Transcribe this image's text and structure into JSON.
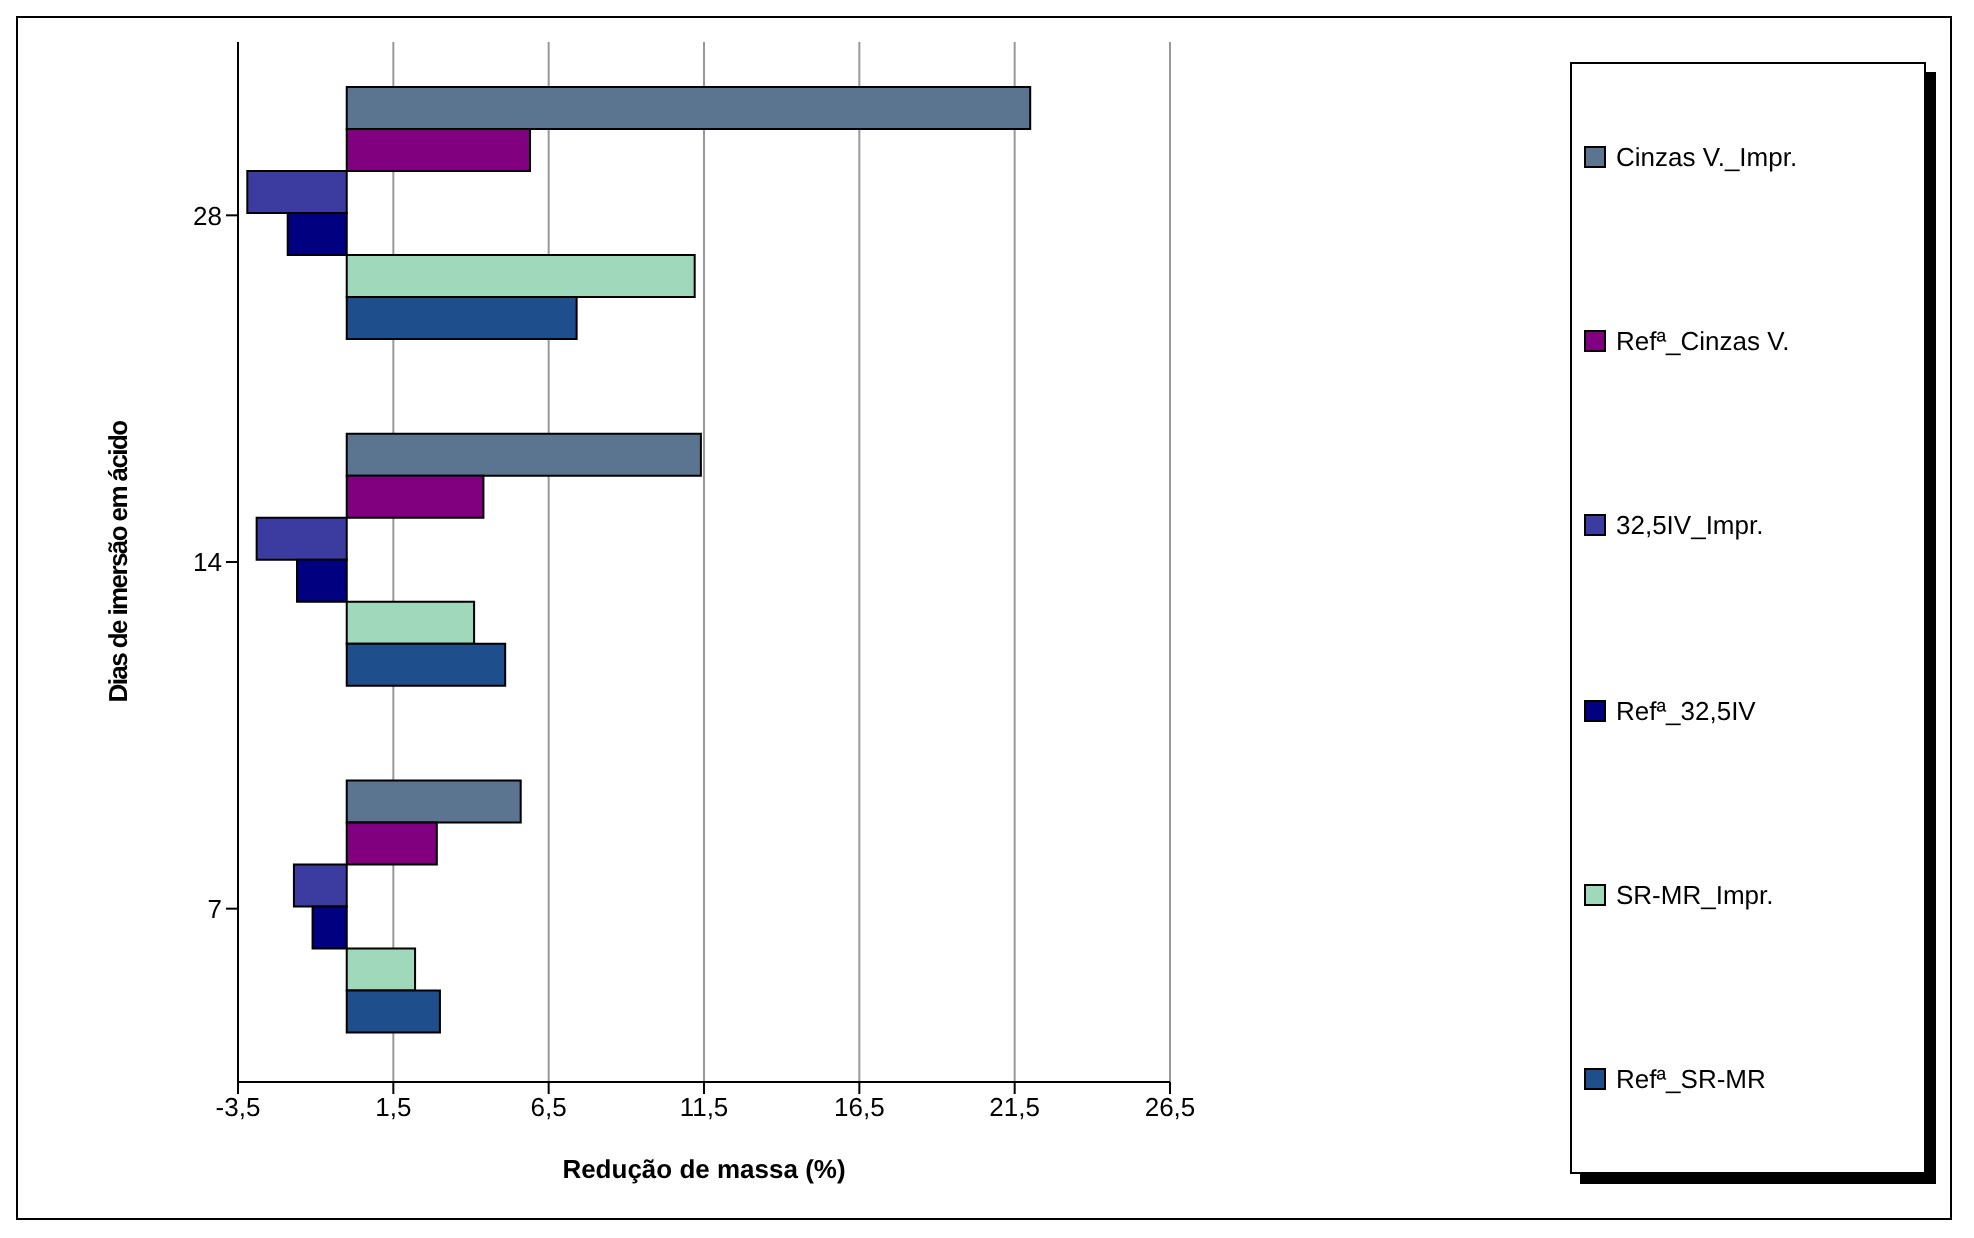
{
  "chart_data": {
    "type": "bar",
    "orientation": "horizontal",
    "xlabel": "Redução de massa (%)",
    "ylabel": "Dias de imersão em ácido",
    "categories": [
      "28",
      "14",
      "7"
    ],
    "series": [
      {
        "name": "Cinzas V._Impr.",
        "color": "#5b7591",
        "values": [
          22.0,
          11.4,
          5.6
        ]
      },
      {
        "name": "Refª_Cinzas V.",
        "color": "#800080",
        "values": [
          5.9,
          4.4,
          2.9
        ]
      },
      {
        "name": "32,5IV_Impr.",
        "color": "#3c3ca0",
        "values": [
          -3.2,
          -2.9,
          -1.7
        ]
      },
      {
        "name": "Refª_32,5IV",
        "color": "#000080",
        "values": [
          -1.9,
          -1.6,
          -1.1
        ]
      },
      {
        "name": "SR-MR_Impr.",
        "color": "#9fd8bb",
        "values": [
          11.2,
          4.1,
          2.2
        ]
      },
      {
        "name": "Refª_SR-MR",
        "color": "#1f4e8c",
        "values": [
          7.4,
          5.1,
          3.0
        ]
      }
    ],
    "xlim": [
      -3.5,
      26.5
    ],
    "xticks": [
      {
        "value": -3.5,
        "label": "-3,5"
      },
      {
        "value": 1.5,
        "label": "1,5"
      },
      {
        "value": 6.5,
        "label": "6,5"
      },
      {
        "value": 11.5,
        "label": "11,5"
      },
      {
        "value": 16.5,
        "label": "16,5"
      },
      {
        "value": 21.5,
        "label": "21,5"
      },
      {
        "value": 26.5,
        "label": "26,5"
      }
    ],
    "grid": "x",
    "legend": "right"
  }
}
